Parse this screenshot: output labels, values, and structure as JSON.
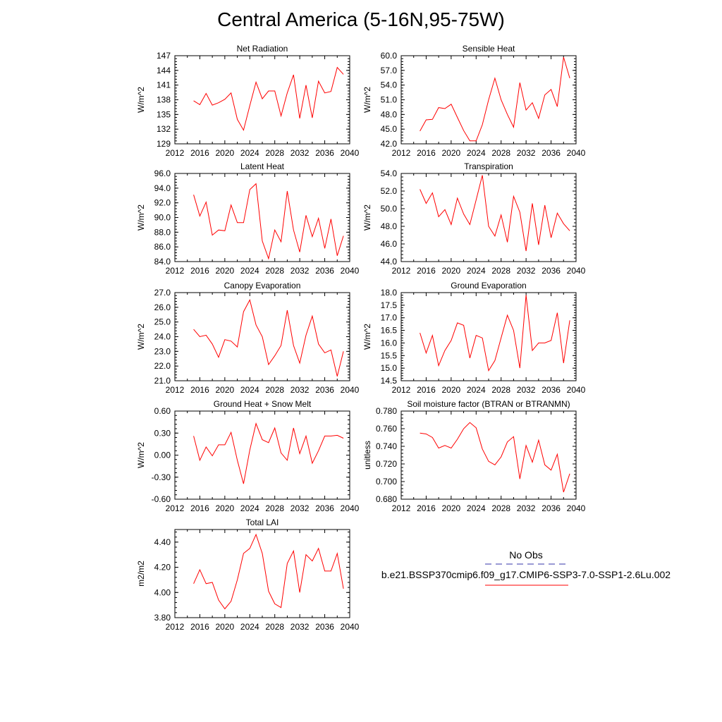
{
  "figure": {
    "title": "Central America (5-16N,95-75W)",
    "line_color": "#ff0000",
    "obs_color": "#3333aa"
  },
  "legend": {
    "obs_label": "No Obs",
    "model_label": "b.e21.BSSP370cmip6.f09_g17.CMIP6-SSP3-7.0-SSP1-2.6Lu.002"
  },
  "chart_data": [
    {
      "type": "line",
      "title": "Net Radiation",
      "xlabel": "",
      "ylabel": "W/m^2",
      "xlim": [
        2012,
        2040
      ],
      "ylim": [
        129,
        147
      ],
      "xticks": [
        "2012",
        "2016",
        "2020",
        "2024",
        "2028",
        "2032",
        "2036",
        "2040"
      ],
      "yticks": [
        "129",
        "132",
        "135",
        "138",
        "141",
        "144",
        "147"
      ],
      "x": [
        2015,
        2016,
        2017,
        2018,
        2019,
        2020,
        2021,
        2022,
        2023,
        2024,
        2025,
        2026,
        2027,
        2028,
        2029,
        2030,
        2031,
        2032,
        2033,
        2034,
        2035,
        2036,
        2037,
        2038,
        2039
      ],
      "values": [
        137.8,
        137.0,
        139.3,
        136.9,
        137.4,
        138.1,
        139.4,
        134.0,
        131.8,
        136.8,
        141.6,
        138.2,
        139.8,
        139.8,
        134.7,
        139.4,
        143.1,
        134.2,
        141.0,
        134.3,
        141.8,
        139.4,
        139.7,
        144.6,
        143.2
      ]
    },
    {
      "type": "line",
      "title": "Sensible Heat",
      "xlabel": "",
      "ylabel": "W/m^2",
      "xlim": [
        2012,
        2040
      ],
      "ylim": [
        42.0,
        60.0
      ],
      "xticks": [
        "2012",
        "2016",
        "2020",
        "2024",
        "2028",
        "2032",
        "2036",
        "2040"
      ],
      "yticks": [
        "42.0",
        "45.0",
        "48.0",
        "51.0",
        "54.0",
        "57.0",
        "60.0"
      ],
      "x": [
        2015,
        2016,
        2017,
        2018,
        2019,
        2020,
        2021,
        2022,
        2023,
        2024,
        2025,
        2026,
        2027,
        2028,
        2029,
        2030,
        2031,
        2032,
        2033,
        2034,
        2035,
        2036,
        2037,
        2038,
        2039
      ],
      "values": [
        44.6,
        46.9,
        47.0,
        49.4,
        49.2,
        50.1,
        47.4,
        44.7,
        42.6,
        42.6,
        45.9,
        51.0,
        55.4,
        51.0,
        48.0,
        45.4,
        54.5,
        48.9,
        50.4,
        47.2,
        52.0,
        53.1,
        49.6,
        59.7,
        55.4
      ]
    },
    {
      "type": "line",
      "title": "Latent Heat",
      "xlabel": "",
      "ylabel": "W/m^2",
      "xlim": [
        2012,
        2040
      ],
      "ylim": [
        84.0,
        96.0
      ],
      "xticks": [
        "2012",
        "2016",
        "2020",
        "2024",
        "2028",
        "2032",
        "2036",
        "2040"
      ],
      "yticks": [
        "84.0",
        "86.0",
        "88.0",
        "90.0",
        "92.0",
        "94.0",
        "96.0"
      ],
      "x": [
        2015,
        2016,
        2017,
        2018,
        2019,
        2020,
        2021,
        2022,
        2023,
        2024,
        2025,
        2026,
        2027,
        2028,
        2029,
        2030,
        2031,
        2032,
        2033,
        2034,
        2035,
        2036,
        2037,
        2038,
        2039
      ],
      "values": [
        93.1,
        90.2,
        92.1,
        87.6,
        88.3,
        88.2,
        91.7,
        89.3,
        89.3,
        93.8,
        94.6,
        86.8,
        84.4,
        88.3,
        86.7,
        93.6,
        88.3,
        85.3,
        90.3,
        87.4,
        89.9,
        85.8,
        89.8,
        84.8,
        87.5
      ]
    },
    {
      "type": "line",
      "title": "Transpiration",
      "xlabel": "",
      "ylabel": "W/m^2",
      "xlim": [
        2012,
        2040
      ],
      "ylim": [
        44.0,
        54.0
      ],
      "xticks": [
        "2012",
        "2016",
        "2020",
        "2024",
        "2028",
        "2032",
        "2036",
        "2040"
      ],
      "yticks": [
        "44.0",
        "46.0",
        "48.0",
        "50.0",
        "52.0",
        "54.0"
      ],
      "x": [
        2015,
        2016,
        2017,
        2018,
        2019,
        2020,
        2021,
        2022,
        2023,
        2024,
        2025,
        2026,
        2027,
        2028,
        2029,
        2030,
        2031,
        2032,
        2033,
        2034,
        2035,
        2036,
        2037,
        2038,
        2039
      ],
      "values": [
        52.2,
        50.6,
        51.8,
        49.1,
        49.9,
        48.2,
        51.2,
        49.4,
        48.2,
        51.0,
        53.8,
        48.0,
        46.9,
        49.3,
        46.2,
        51.4,
        49.6,
        45.2,
        50.6,
        45.9,
        50.4,
        46.7,
        49.5,
        48.3,
        47.5
      ]
    },
    {
      "type": "line",
      "title": "Canopy Evaporation",
      "xlabel": "",
      "ylabel": "W/m^2",
      "xlim": [
        2012,
        2040
      ],
      "ylim": [
        21.0,
        27.0
      ],
      "xticks": [
        "2012",
        "2016",
        "2020",
        "2024",
        "2028",
        "2032",
        "2036",
        "2040"
      ],
      "yticks": [
        "21.0",
        "22.0",
        "23.0",
        "24.0",
        "25.0",
        "26.0",
        "27.0"
      ],
      "x": [
        2015,
        2016,
        2017,
        2018,
        2019,
        2020,
        2021,
        2022,
        2023,
        2024,
        2025,
        2026,
        2027,
        2028,
        2029,
        2030,
        2031,
        2032,
        2033,
        2034,
        2035,
        2036,
        2037,
        2038,
        2039
      ],
      "values": [
        24.5,
        24.0,
        24.1,
        23.5,
        22.6,
        23.8,
        23.7,
        23.3,
        25.7,
        26.5,
        24.8,
        24.0,
        22.1,
        22.7,
        23.4,
        25.8,
        23.4,
        22.2,
        24.1,
        25.4,
        23.5,
        22.9,
        23.1,
        21.3,
        23.0
      ]
    },
    {
      "type": "line",
      "title": "Ground Evaporation",
      "xlabel": "",
      "ylabel": "W/m^2",
      "xlim": [
        2012,
        2040
      ],
      "ylim": [
        14.5,
        18.0
      ],
      "xticks": [
        "2012",
        "2016",
        "2020",
        "2024",
        "2028",
        "2032",
        "2036",
        "2040"
      ],
      "yticks": [
        "14.5",
        "15.0",
        "15.5",
        "16.0",
        "16.5",
        "17.0",
        "17.5",
        "18.0"
      ],
      "x": [
        2015,
        2016,
        2017,
        2018,
        2019,
        2020,
        2021,
        2022,
        2023,
        2024,
        2025,
        2026,
        2027,
        2028,
        2029,
        2030,
        2031,
        2032,
        2033,
        2034,
        2035,
        2036,
        2037,
        2038,
        2039
      ],
      "values": [
        16.4,
        15.6,
        16.3,
        15.1,
        15.7,
        16.1,
        16.8,
        16.7,
        15.4,
        16.3,
        16.2,
        14.9,
        15.3,
        16.2,
        17.1,
        16.5,
        15.0,
        17.9,
        15.7,
        16.0,
        16.0,
        16.1,
        17.2,
        15.2,
        16.9
      ]
    },
    {
      "type": "line",
      "title": "Ground Heat + Snow Melt",
      "xlabel": "",
      "ylabel": "W/m^2",
      "xlim": [
        2012,
        2040
      ],
      "ylim": [
        -0.6,
        0.6
      ],
      "xticks": [
        "2012",
        "2016",
        "2020",
        "2024",
        "2028",
        "2032",
        "2036",
        "2040"
      ],
      "yticks": [
        "-0.60",
        "-0.30",
        "0.00",
        "0.30",
        "0.60"
      ],
      "x": [
        2015,
        2016,
        2017,
        2018,
        2019,
        2020,
        2021,
        2022,
        2023,
        2024,
        2025,
        2026,
        2027,
        2028,
        2029,
        2030,
        2031,
        2032,
        2033,
        2034,
        2035,
        2036,
        2037,
        2038,
        2039
      ],
      "values": [
        0.26,
        -0.07,
        0.11,
        -0.01,
        0.14,
        0.14,
        0.31,
        -0.07,
        -0.39,
        0.07,
        0.43,
        0.21,
        0.17,
        0.37,
        0.03,
        -0.07,
        0.37,
        0.02,
        0.26,
        -0.11,
        0.06,
        0.26,
        0.26,
        0.27,
        0.23
      ]
    },
    {
      "type": "line",
      "title": "Soil moisture factor (BTRAN or BTRANMN)",
      "xlabel": "",
      "ylabel": "unitless",
      "xlim": [
        2012,
        2040
      ],
      "ylim": [
        0.68,
        0.78
      ],
      "xticks": [
        "2012",
        "2016",
        "2020",
        "2024",
        "2028",
        "2032",
        "2036",
        "2040"
      ],
      "yticks": [
        "0.680",
        "0.700",
        "0.720",
        "0.740",
        "0.760",
        "0.780"
      ],
      "x": [
        2015,
        2016,
        2017,
        2018,
        2019,
        2020,
        2021,
        2022,
        2023,
        2024,
        2025,
        2026,
        2027,
        2028,
        2029,
        2030,
        2031,
        2032,
        2033,
        2034,
        2035,
        2036,
        2037,
        2038,
        2039
      ],
      "values": [
        0.755,
        0.754,
        0.75,
        0.738,
        0.741,
        0.738,
        0.748,
        0.76,
        0.767,
        0.761,
        0.737,
        0.723,
        0.719,
        0.728,
        0.745,
        0.751,
        0.703,
        0.741,
        0.722,
        0.747,
        0.719,
        0.713,
        0.731,
        0.688,
        0.709
      ]
    },
    {
      "type": "line",
      "title": "Total LAI",
      "xlabel": "",
      "ylabel": "m2/m2",
      "xlim": [
        2012,
        2040
      ],
      "ylim": [
        3.8,
        4.5
      ],
      "xticks": [
        "2012",
        "2016",
        "2020",
        "2024",
        "2028",
        "2032",
        "2036",
        "2040"
      ],
      "yticks": [
        "3.80",
        "4.00",
        "4.20",
        "4.40"
      ],
      "x": [
        2015,
        2016,
        2017,
        2018,
        2019,
        2020,
        2021,
        2022,
        2023,
        2024,
        2025,
        2026,
        2027,
        2028,
        2029,
        2030,
        2031,
        2032,
        2033,
        2034,
        2035,
        2036,
        2037,
        2038,
        2039
      ],
      "values": [
        4.07,
        4.18,
        4.07,
        4.08,
        3.94,
        3.87,
        3.93,
        4.1,
        4.31,
        4.35,
        4.46,
        4.31,
        4.01,
        3.91,
        3.88,
        4.23,
        4.33,
        4.0,
        4.3,
        4.25,
        4.35,
        4.17,
        4.17,
        4.31,
        4.03
      ]
    }
  ]
}
